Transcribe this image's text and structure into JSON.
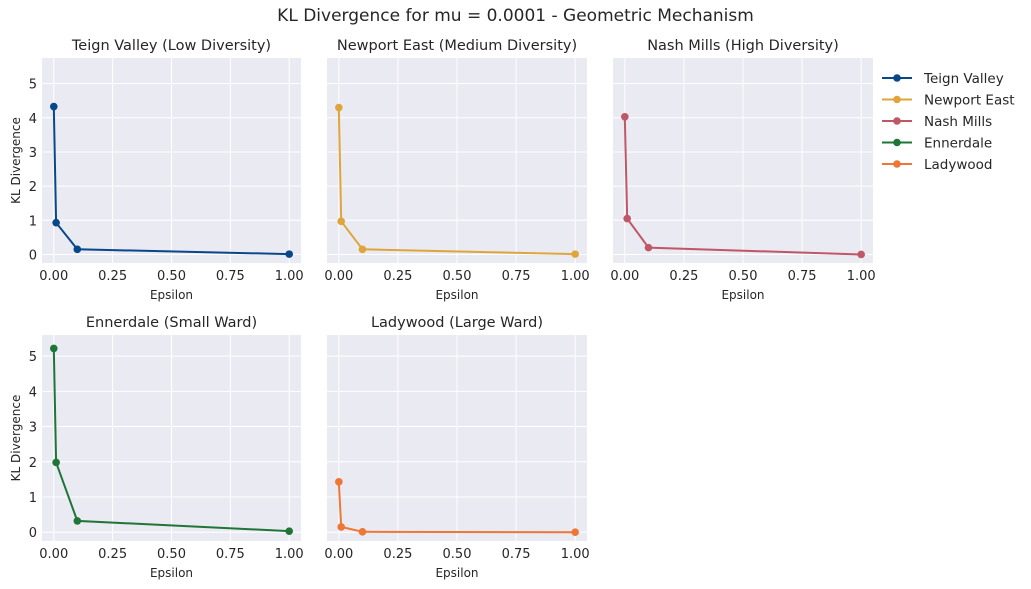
{
  "figure": {
    "title": "KL Divergence for mu = 0.0001 - Geometric Mechanism"
  },
  "legend": {
    "placement": "right",
    "entries": [
      {
        "name": "Teign Valley",
        "color": "#08478a"
      },
      {
        "name": "Newport East",
        "color": "#e0a53a"
      },
      {
        "name": "Nash Mills",
        "color": "#c05766"
      },
      {
        "name": "Ennerdale",
        "color": "#1e7537"
      },
      {
        "name": "Ladywood",
        "color": "#ee7735"
      }
    ]
  },
  "chart_data": [
    {
      "type": "line",
      "title": "Teign Valley (Low Diversity)",
      "xlabel": "Epsilon",
      "ylabel": "KL Divergence",
      "xlim": [
        -0.05,
        1.05
      ],
      "ylim": [
        -0.25,
        5.75
      ],
      "xticks": [
        "0.00",
        "0.25",
        "0.50",
        "0.75",
        "1.00"
      ],
      "yticks": [
        "0",
        "1",
        "2",
        "3",
        "4",
        "5"
      ],
      "grid": true,
      "series": [
        {
          "name": "Teign Valley",
          "color": "#08478a",
          "x": [
            0.0001,
            0.01,
            0.1,
            1.0
          ],
          "y": [
            4.33,
            0.93,
            0.15,
            0.01
          ]
        }
      ]
    },
    {
      "type": "line",
      "title": "Newport East (Medium Diversity)",
      "xlabel": "Epsilon",
      "ylabel": "",
      "xlim": [
        -0.05,
        1.05
      ],
      "ylim": [
        -0.25,
        5.75
      ],
      "xticks": [
        "0.00",
        "0.25",
        "0.50",
        "0.75",
        "1.00"
      ],
      "yticks": [],
      "grid": true,
      "series": [
        {
          "name": "Newport East",
          "color": "#e0a53a",
          "x": [
            0.0001,
            0.01,
            0.1,
            1.0
          ],
          "y": [
            4.3,
            0.97,
            0.15,
            0.01
          ]
        }
      ]
    },
    {
      "type": "line",
      "title": "Nash Mills (High Diversity)",
      "xlabel": "Epsilon",
      "ylabel": "",
      "xlim": [
        -0.05,
        1.05
      ],
      "ylim": [
        -0.25,
        5.75
      ],
      "xticks": [
        "0.00",
        "0.25",
        "0.50",
        "0.75",
        "1.00"
      ],
      "yticks": [],
      "grid": true,
      "series": [
        {
          "name": "Nash Mills",
          "color": "#c05766",
          "x": [
            0.0001,
            0.01,
            0.1,
            1.0
          ],
          "y": [
            4.03,
            1.05,
            0.2,
            0.0
          ]
        }
      ]
    },
    {
      "type": "line",
      "title": "Ennerdale (Small Ward)",
      "xlabel": "Epsilon",
      "ylabel": "KL Divergence",
      "xlim": [
        -0.05,
        1.05
      ],
      "ylim": [
        -0.25,
        5.6
      ],
      "xticks": [
        "0.00",
        "0.25",
        "0.50",
        "0.75",
        "1.00"
      ],
      "yticks": [
        "0",
        "1",
        "2",
        "3",
        "4",
        "5"
      ],
      "grid": true,
      "series": [
        {
          "name": "Ennerdale",
          "color": "#1e7537",
          "x": [
            0.0001,
            0.01,
            0.1,
            1.0
          ],
          "y": [
            5.22,
            1.98,
            0.32,
            0.03
          ]
        }
      ]
    },
    {
      "type": "line",
      "title": "Ladywood (Large Ward)",
      "xlabel": "Epsilon",
      "ylabel": "",
      "xlim": [
        -0.05,
        1.05
      ],
      "ylim": [
        -0.25,
        5.6
      ],
      "xticks": [
        "0.00",
        "0.25",
        "0.50",
        "0.75",
        "1.00"
      ],
      "yticks": [],
      "grid": true,
      "series": [
        {
          "name": "Ladywood",
          "color": "#ee7735",
          "x": [
            0.0001,
            0.01,
            0.1,
            1.0
          ],
          "y": [
            1.43,
            0.15,
            0.01,
            0.0
          ]
        }
      ]
    }
  ]
}
